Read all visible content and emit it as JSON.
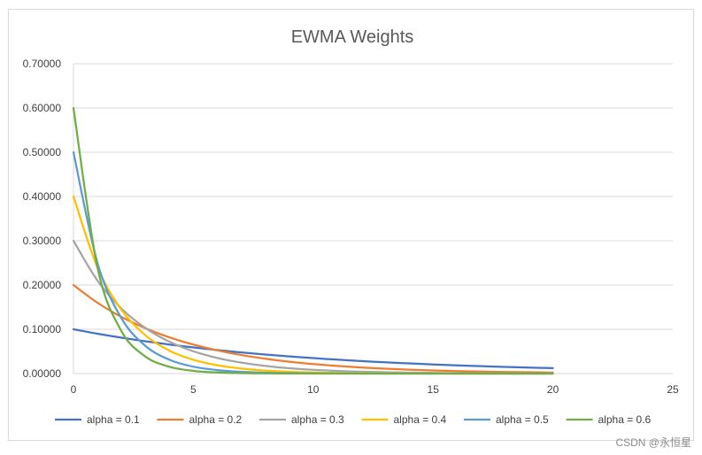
{
  "chart_data": {
    "type": "line",
    "title": "EWMA Weights",
    "xlabel": "",
    "ylabel": "",
    "xlim": [
      0,
      25
    ],
    "ylim": [
      0,
      0.7
    ],
    "x_ticks": [
      0,
      5,
      10,
      15,
      20,
      25
    ],
    "y_ticks": [
      0,
      0.1,
      0.2,
      0.3,
      0.4,
      0.5,
      0.6,
      0.7
    ],
    "y_tick_labels": [
      "0.00000",
      "0.10000",
      "0.20000",
      "0.30000",
      "0.40000",
      "0.50000",
      "0.60000",
      "0.70000"
    ],
    "x_tick_labels": [
      "0",
      "5",
      "10",
      "15",
      "20",
      "25"
    ],
    "grid": "horizontal",
    "legend_position": "bottom",
    "x": [
      0,
      1,
      2,
      3,
      4,
      5,
      6,
      7,
      8,
      9,
      10,
      11,
      12,
      13,
      14,
      15,
      16,
      17,
      18,
      19,
      20
    ],
    "series": [
      {
        "name": "alpha = 0.1",
        "color": "#4472c4",
        "values": [
          0.1,
          0.09,
          0.081,
          0.0729,
          0.0656,
          0.059,
          0.0531,
          0.0478,
          0.043,
          0.0387,
          0.0349,
          0.0314,
          0.0282,
          0.0254,
          0.0229,
          0.0206,
          0.0185,
          0.0167,
          0.015,
          0.0135,
          0.0122
        ]
      },
      {
        "name": "alpha = 0.2",
        "color": "#ed7d31",
        "values": [
          0.2,
          0.16,
          0.128,
          0.1024,
          0.0819,
          0.0655,
          0.0524,
          0.0419,
          0.0336,
          0.0268,
          0.0215,
          0.0172,
          0.0137,
          0.011,
          0.0088,
          0.007,
          0.0056,
          0.0045,
          0.0036,
          0.0029,
          0.0023
        ]
      },
      {
        "name": "alpha = 0.3",
        "color": "#a5a5a5",
        "values": [
          0.3,
          0.21,
          0.147,
          0.1029,
          0.072,
          0.0504,
          0.0353,
          0.0247,
          0.0173,
          0.0121,
          0.0085,
          0.0059,
          0.0042,
          0.0029,
          0.002,
          0.0014,
          0.001,
          0.0007,
          0.0005,
          0.0003,
          0.0002
        ]
      },
      {
        "name": "alpha = 0.4",
        "color": "#ffc000",
        "values": [
          0.4,
          0.24,
          0.144,
          0.0864,
          0.0518,
          0.0311,
          0.0187,
          0.0112,
          0.0067,
          0.004,
          0.0024,
          0.0015,
          0.0009,
          0.0005,
          0.0003,
          0.0002,
          0.0001,
          0.0001,
          0.0,
          0.0,
          0.0
        ]
      },
      {
        "name": "alpha = 0.5",
        "color": "#5b9bd5",
        "values": [
          0.5,
          0.25,
          0.125,
          0.0625,
          0.0313,
          0.0156,
          0.0078,
          0.0039,
          0.002,
          0.001,
          0.0005,
          0.0002,
          0.0001,
          0.0001,
          0.0,
          0.0,
          0.0,
          0.0,
          0.0,
          0.0,
          0.0
        ]
      },
      {
        "name": "alpha = 0.6",
        "color": "#70ad47",
        "values": [
          0.6,
          0.24,
          0.096,
          0.0384,
          0.0154,
          0.0061,
          0.0025,
          0.001,
          0.0004,
          0.0002,
          0.0001,
          0.0,
          0.0,
          0.0,
          0.0,
          0.0,
          0.0,
          0.0,
          0.0,
          0.0,
          0.0
        ]
      }
    ]
  },
  "watermark": "CSDN @永恒星",
  "colors": {
    "axis": "#d9d9d9",
    "text": "#404040",
    "title": "#595959"
  }
}
